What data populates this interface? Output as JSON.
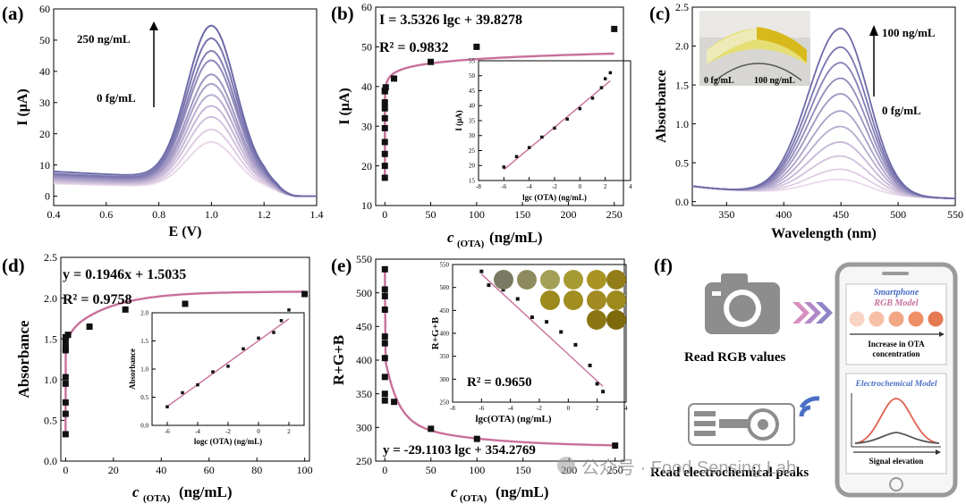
{
  "panels": {
    "a": {
      "label": "(a)"
    },
    "b": {
      "label": "(b)"
    },
    "c": {
      "label": "(c)"
    },
    "d": {
      "label": "(d)"
    },
    "e": {
      "label": "(e)"
    },
    "f": {
      "label": "(f)"
    }
  },
  "chart_data": [
    {
      "id": "a",
      "type": "line",
      "xlabel": "E (V)",
      "ylabel": "I (μA)",
      "xlim": [
        0.4,
        1.4
      ],
      "ylim": [
        -3,
        60
      ],
      "xticks": [
        "0.4",
        "0.6",
        "0.8",
        "1.0",
        "1.2",
        "1.4"
      ],
      "yticks": [
        "0",
        "10",
        "20",
        "30",
        "40",
        "50",
        "60"
      ],
      "annotations": {
        "top": "250 ng/mL",
        "bottom": "0 fg/mL"
      },
      "peak_potential": 1.0,
      "peak_currents": [
        17,
        21,
        25,
        28.5,
        32,
        35.5,
        38.5,
        43,
        46,
        50,
        54
      ],
      "baseline_at_0_4": [
        4.5,
        4.8,
        5.2,
        5.5,
        6,
        6.3,
        6.8,
        7.2,
        7.6,
        8,
        8.8
      ]
    },
    {
      "id": "b",
      "type": "scatter",
      "xlabel": "c (OTA) (ng/mL)",
      "ylabel": "I (μA)",
      "equation": "I =  3.5326 lgc + 39.8278",
      "r2": "R² = 0.9832",
      "xlim": [
        -10,
        260
      ],
      "ylim": [
        10,
        60
      ],
      "xticks": [
        "0",
        "50",
        "100",
        "150",
        "200",
        "250"
      ],
      "yticks": [
        "10",
        "20",
        "30",
        "40",
        "50",
        "60"
      ],
      "x": [
        0,
        0,
        0,
        0,
        0,
        0,
        0,
        0,
        0,
        0,
        1,
        10,
        50,
        100,
        250
      ],
      "y": [
        17,
        20,
        23,
        26,
        29.5,
        32,
        34.5,
        36,
        38.8,
        39,
        39.8,
        42,
        46.2,
        50,
        54.5
      ],
      "inset": {
        "xlabel": "lgc (OTA) (ng/mL)",
        "ylabel": "I (μA)",
        "xlim": [
          -8,
          4
        ],
        "ylim": [
          15,
          55
        ],
        "xticks": [
          "-8",
          "-6",
          "-4",
          "-2",
          "0",
          "2",
          "4"
        ],
        "yticks": [
          "15",
          "20",
          "25",
          "30",
          "35",
          "40",
          "45",
          "50",
          "55"
        ],
        "x": [
          -6,
          -5,
          -4,
          -3,
          -2,
          -1,
          0,
          1,
          1.7,
          2,
          2.4
        ],
        "y": [
          19.5,
          23,
          26,
          29.5,
          32.5,
          35.5,
          39,
          42.5,
          46,
          49,
          51
        ],
        "fit": {
          "slope": 3.5326,
          "intercept": 39.8278,
          "x_range": [
            -6,
            2.4
          ]
        }
      }
    },
    {
      "id": "c",
      "type": "line",
      "xlabel": "Wavelength (nm)",
      "ylabel": "Absorbance",
      "xlim": [
        320,
        550
      ],
      "ylim": [
        -0.05,
        2.5
      ],
      "xticks": [
        "350",
        "400",
        "450",
        "500",
        "550"
      ],
      "yticks": [
        "0.0",
        "0.5",
        "1.0",
        "1.5",
        "2.0",
        "2.5"
      ],
      "annotations": {
        "top": "100 ng/mL",
        "bottom": "0 fg/mL",
        "photo_left": "0 fg/mL",
        "photo_right": "100 ng/mL"
      },
      "peak_wavelength": 450,
      "peak_absorbance": [
        0.32,
        0.45,
        0.62,
        0.8,
        1.0,
        1.2,
        1.42,
        1.62,
        1.82,
        2.02,
        2.26
      ]
    },
    {
      "id": "d",
      "type": "scatter",
      "xlabel": "c (OTA) (ng/mL)",
      "ylabel": "Absorbance",
      "equation": "y =  0.1946x + 1.5035",
      "r2": "R² = 0.9758",
      "xlim": [
        -2,
        102
      ],
      "ylim": [
        0,
        2.5
      ],
      "xticks": [
        "0",
        "20",
        "40",
        "60",
        "80",
        "100"
      ],
      "yticks": [
        "0.0",
        "0.5",
        "1.0",
        "1.5",
        "2.0",
        "2.5"
      ],
      "x": [
        0,
        0,
        0,
        0,
        0,
        0,
        0,
        0,
        0,
        1,
        10,
        25,
        50,
        100
      ],
      "y": [
        0.33,
        0.58,
        0.72,
        0.95,
        1.03,
        1.36,
        1.38,
        1.45,
        1.52,
        1.55,
        1.65,
        1.86,
        1.93,
        2.05
      ],
      "inset": {
        "xlabel": "logc (OTA) (ng/mL)",
        "ylabel": "Absorbance",
        "xlim": [
          -7,
          3
        ],
        "ylim": [
          0,
          2
        ],
        "xticks": [
          "-6",
          "-4",
          "-2",
          "0",
          "2"
        ],
        "yticks": [
          "0.0",
          "0.5",
          "1.0",
          "1.5",
          "2.0"
        ],
        "x": [
          -6,
          -5,
          -4,
          -3,
          -2,
          -1,
          0,
          1,
          1.5,
          2
        ],
        "y": [
          0.33,
          0.58,
          0.72,
          0.95,
          1.05,
          1.36,
          1.55,
          1.65,
          1.86,
          2.05
        ],
        "fit": {
          "slope": 0.1946,
          "intercept": 1.5035,
          "x_range": [
            -6,
            2
          ]
        }
      }
    },
    {
      "id": "e",
      "type": "scatter",
      "xlabel": "c(OTA) (ng/mL)",
      "ylabel": "R+G+B",
      "equation": "y =  -29.1103 lgc + 354.2769",
      "r2": "R² = 0.9650",
      "xlim": [
        -10,
        260
      ],
      "ylim": [
        250,
        550
      ],
      "xticks": [
        "0",
        "50",
        "100",
        "150",
        "200",
        "250"
      ],
      "yticks": [
        "250",
        "300",
        "350",
        "400",
        "450",
        "500",
        "550"
      ],
      "x": [
        0,
        0,
        0,
        0,
        0,
        0,
        0,
        0,
        0,
        0,
        10,
        50,
        100,
        250
      ],
      "y": [
        535,
        505,
        495,
        475,
        435,
        425,
        403,
        375,
        350,
        340,
        338,
        298,
        283,
        273
      ],
      "inset": {
        "xlabel": "lgc(OTA) (ng/mL)",
        "ylabel": "R+G+B",
        "xlim": [
          -8,
          4
        ],
        "ylim": [
          250,
          550
        ],
        "xticks": [
          "-8",
          "-6",
          "-4",
          "-2",
          "0",
          "2",
          "4"
        ],
        "yticks": [
          "250",
          "300",
          "350",
          "400",
          "450",
          "500",
          "550"
        ],
        "x": [
          -6,
          -5.5,
          -4.5,
          -3.5,
          -2.5,
          -1.5,
          -0.5,
          0.5,
          1.5,
          2,
          2.4
        ],
        "y": [
          535,
          505,
          495,
          475,
          435,
          425,
          403,
          375,
          330,
          290,
          273
        ],
        "fit": {
          "slope": -29.1103,
          "intercept": 354.2769,
          "x_range": [
            -6,
            2.4
          ]
        },
        "swatch_colors": [
          "#7a7a62",
          "#8d8b5e",
          "#a39f55",
          "#a69a33",
          "#a99423",
          "#9c8a1c",
          "#a18d20",
          "#a28b22",
          "#927d18",
          "#8a7612",
          "#7d6a0c"
        ]
      }
    }
  ],
  "schematic": {
    "read_rgb": "Read RGB values",
    "read_ec": "Read electrochemical peaks",
    "phone_title": "Smartphone",
    "phone_subtitle": "RGB Model",
    "increase_text_1": "Increase in OTA",
    "increase_text_2": "concentration",
    "ec_model": "Electrochemical Model",
    "signal_text": "Signal elevation",
    "dot_colors": [
      "#f9d3c4",
      "#f7c0a6",
      "#f3a684",
      "#ef8f67",
      "#e57a52"
    ],
    "chevron_colors": [
      "#d68fbf",
      "#b089c9",
      "#8e84c6"
    ],
    "wifi_color": "#4a6fc5"
  },
  "watermark": "公众号 · Food Sensing Lab",
  "colors": {
    "curve_light": "#ead8ea",
    "curve_dark": "#6d6aa8",
    "fit": "#c8709b",
    "marker": "#111111"
  }
}
